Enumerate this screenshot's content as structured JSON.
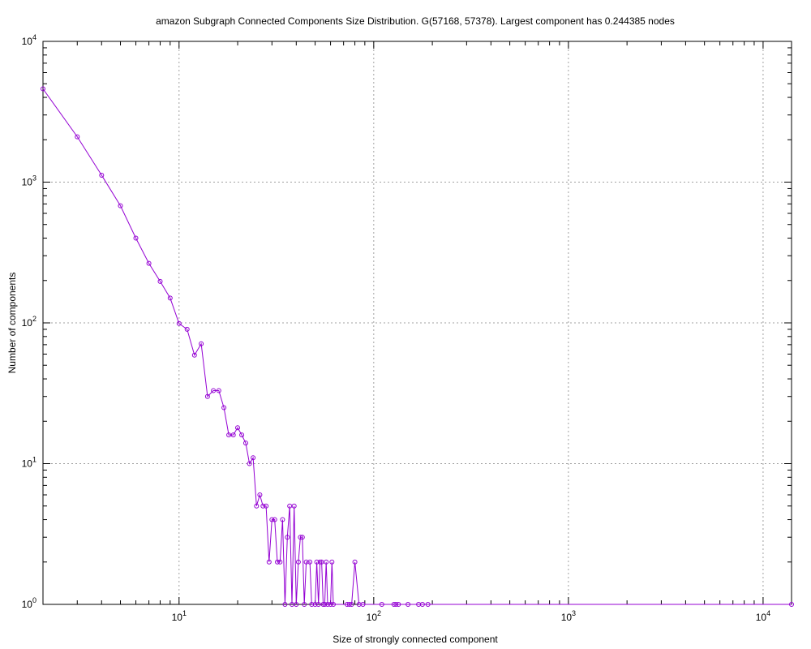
{
  "chart_data": {
    "type": "line",
    "title": "amazon Subgraph Connected Components Size Distribution. G(57168, 57378). Largest component has 0.244385 nodes",
    "xlabel": "Size of strongly connected component",
    "ylabel": "Number of components",
    "x_scale": "log",
    "y_scale": "log",
    "xlim": [
      2,
      14000
    ],
    "ylim": [
      1,
      10000
    ],
    "grid": true,
    "legend": "none",
    "x_tick_labels": [
      {
        "value": 10,
        "base": "10",
        "exp": "1"
      },
      {
        "value": 100,
        "base": "10",
        "exp": "2"
      },
      {
        "value": 1000,
        "base": "10",
        "exp": "3"
      },
      {
        "value": 10000,
        "base": "10",
        "exp": "4"
      }
    ],
    "y_tick_labels": [
      {
        "value": 1,
        "base": "10",
        "exp": "0"
      },
      {
        "value": 10,
        "base": "10",
        "exp": "1"
      },
      {
        "value": 100,
        "base": "10",
        "exp": "2"
      },
      {
        "value": 1000,
        "base": "10",
        "exp": "3"
      },
      {
        "value": 10000,
        "base": "10",
        "exp": "4"
      }
    ],
    "series": [
      {
        "color": "#9400d3",
        "x": [
          2,
          3,
          4,
          5,
          6,
          7,
          8,
          9,
          10,
          11,
          12,
          13,
          14,
          15,
          16,
          17,
          18,
          19,
          20,
          21,
          22,
          23,
          24,
          25,
          26,
          27,
          28,
          29,
          30,
          31,
          32,
          33,
          34,
          35,
          36,
          37,
          38,
          39,
          40,
          41,
          42,
          43,
          44,
          45,
          47,
          48,
          50,
          51,
          52,
          53,
          54,
          55,
          56,
          57,
          58,
          60,
          61,
          62,
          73,
          75,
          77,
          80,
          84,
          88,
          110,
          127,
          130,
          134,
          150,
          170,
          178,
          190,
          14000
        ],
        "y": [
          4600,
          2100,
          1120,
          680,
          400,
          265,
          197,
          150,
          99,
          90,
          59,
          71,
          30,
          33,
          33,
          25,
          16,
          16,
          18,
          16,
          14,
          10,
          11,
          5,
          6,
          5,
          5,
          2,
          4,
          4,
          2,
          2,
          4,
          1,
          3,
          5,
          1,
          5,
          1,
          2,
          3,
          3,
          1,
          2,
          2,
          1,
          1,
          2,
          1,
          2,
          2,
          1,
          1,
          2,
          1,
          1,
          2,
          1,
          1,
          1,
          1,
          2,
          1,
          1,
          1,
          1,
          1,
          1,
          1,
          1,
          1,
          1,
          1
        ]
      }
    ]
  }
}
